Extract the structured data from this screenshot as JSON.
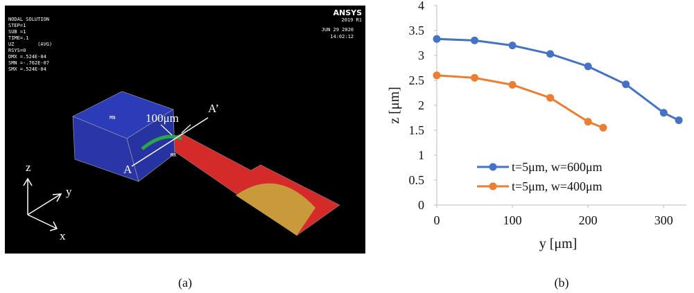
{
  "panel_a": {
    "header": [
      "NODAL SOLUTION",
      "STEP=1",
      "SUB =1",
      "TIME=.1",
      "UZ        (AVG)",
      "RSYS=0",
      "DMX =.524E-04",
      "SMN =-.762E-07",
      "SMX =.524E-04"
    ],
    "logo": "ANSYS",
    "version": "2019 R1",
    "date": "JUN 29 2020",
    "time": "14:02:12",
    "width_label": "100μm",
    "point_a": "A",
    "point_a_prime": "A’",
    "mn": "MN",
    "mx": "MX",
    "axis_z": "z",
    "axis_y": "y",
    "axis_x": "x"
  },
  "captions": [
    "(a)",
    "(b)"
  ],
  "chart_data": {
    "type": "line",
    "x_label": "y [μm]",
    "y_label": "z [μm]",
    "xlim": [
      0,
      330
    ],
    "xticks": [
      0,
      100,
      200,
      300
    ],
    "ylim": [
      0,
      4
    ],
    "yticks": [
      0,
      0.5,
      1,
      1.5,
      2,
      2.5,
      3,
      3.5,
      4
    ],
    "grid": false,
    "legend": "lower left",
    "series": [
      {
        "name": "t=5μm, w=600μm",
        "color": "#4472c4",
        "x": [
          0,
          50,
          100,
          150,
          200,
          250,
          300,
          320
        ],
        "values": [
          3.33,
          3.3,
          3.2,
          3.03,
          2.78,
          2.42,
          1.85,
          1.7
        ]
      },
      {
        "name": "t=5μm, w=400μm",
        "color": "#ed7d31",
        "x": [
          0,
          50,
          100,
          150,
          200,
          220
        ],
        "values": [
          2.6,
          2.55,
          2.41,
          2.15,
          1.67,
          1.55
        ]
      }
    ]
  }
}
